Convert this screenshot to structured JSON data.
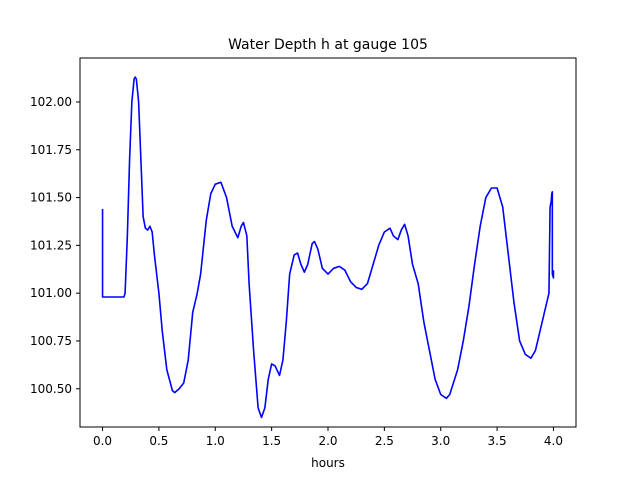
{
  "chart_data": {
    "type": "line",
    "title": "Water Depth h at gauge 105",
    "xlabel": "hours",
    "ylabel": "",
    "xlim": [
      -0.2,
      4.2
    ],
    "ylim": [
      100.3,
      102.23
    ],
    "xticks": [
      0.0,
      0.5,
      1.0,
      1.5,
      2.0,
      2.5,
      3.0,
      3.5,
      4.0
    ],
    "xtick_labels": [
      "0.0",
      "0.5",
      "1.0",
      "1.5",
      "2.0",
      "2.5",
      "3.0",
      "3.5",
      "4.0"
    ],
    "yticks": [
      100.5,
      100.75,
      101.0,
      101.25,
      101.5,
      101.75,
      102.0
    ],
    "ytick_labels": [
      "100.50",
      "100.75",
      "101.00",
      "101.25",
      "101.50",
      "101.75",
      "102.00"
    ],
    "grid": false,
    "line_color": "#0000ff",
    "series": [
      {
        "name": "",
        "points": [
          [
            0.0,
            101.44
          ],
          [
            0.0,
            100.98
          ],
          [
            0.1,
            100.98
          ],
          [
            0.19,
            100.98
          ],
          [
            0.2,
            101.0
          ],
          [
            0.22,
            101.3
          ],
          [
            0.24,
            101.7
          ],
          [
            0.26,
            102.0
          ],
          [
            0.28,
            102.12
          ],
          [
            0.29,
            102.13
          ],
          [
            0.3,
            102.12
          ],
          [
            0.32,
            102.0
          ],
          [
            0.34,
            101.7
          ],
          [
            0.36,
            101.4
          ],
          [
            0.38,
            101.34
          ],
          [
            0.4,
            101.33
          ],
          [
            0.42,
            101.35
          ],
          [
            0.44,
            101.32
          ],
          [
            0.46,
            101.2
          ],
          [
            0.5,
            101.0
          ],
          [
            0.53,
            100.8
          ],
          [
            0.57,
            100.6
          ],
          [
            0.62,
            100.49
          ],
          [
            0.64,
            100.48
          ],
          [
            0.68,
            100.5
          ],
          [
            0.72,
            100.53
          ],
          [
            0.76,
            100.65
          ],
          [
            0.8,
            100.9
          ],
          [
            0.84,
            101.0
          ],
          [
            0.87,
            101.1
          ],
          [
            0.92,
            101.38
          ],
          [
            0.96,
            101.52
          ],
          [
            1.0,
            101.57
          ],
          [
            1.05,
            101.58
          ],
          [
            1.1,
            101.5
          ],
          [
            1.15,
            101.35
          ],
          [
            1.2,
            101.29
          ],
          [
            1.23,
            101.35
          ],
          [
            1.25,
            101.37
          ],
          [
            1.28,
            101.3
          ],
          [
            1.3,
            101.05
          ],
          [
            1.34,
            100.7
          ],
          [
            1.38,
            100.4
          ],
          [
            1.41,
            100.35
          ],
          [
            1.44,
            100.4
          ],
          [
            1.47,
            100.55
          ],
          [
            1.5,
            100.63
          ],
          [
            1.53,
            100.62
          ],
          [
            1.57,
            100.57
          ],
          [
            1.6,
            100.65
          ],
          [
            1.63,
            100.85
          ],
          [
            1.66,
            101.1
          ],
          [
            1.7,
            101.2
          ],
          [
            1.73,
            101.21
          ],
          [
            1.76,
            101.15
          ],
          [
            1.79,
            101.11
          ],
          [
            1.82,
            101.15
          ],
          [
            1.86,
            101.26
          ],
          [
            1.88,
            101.27
          ],
          [
            1.91,
            101.23
          ],
          [
            1.95,
            101.13
          ],
          [
            2.0,
            101.1
          ],
          [
            2.05,
            101.13
          ],
          [
            2.1,
            101.14
          ],
          [
            2.15,
            101.12
          ],
          [
            2.2,
            101.06
          ],
          [
            2.25,
            101.03
          ],
          [
            2.3,
            101.02
          ],
          [
            2.35,
            101.05
          ],
          [
            2.4,
            101.15
          ],
          [
            2.45,
            101.25
          ],
          [
            2.5,
            101.32
          ],
          [
            2.55,
            101.34
          ],
          [
            2.58,
            101.3
          ],
          [
            2.62,
            101.28
          ],
          [
            2.65,
            101.33
          ],
          [
            2.68,
            101.36
          ],
          [
            2.71,
            101.3
          ],
          [
            2.75,
            101.15
          ],
          [
            2.8,
            101.05
          ],
          [
            2.85,
            100.85
          ],
          [
            2.9,
            100.7
          ],
          [
            2.95,
            100.55
          ],
          [
            3.0,
            100.47
          ],
          [
            3.05,
            100.45
          ],
          [
            3.08,
            100.47
          ],
          [
            3.15,
            100.6
          ],
          [
            3.2,
            100.75
          ],
          [
            3.25,
            100.93
          ],
          [
            3.3,
            101.15
          ],
          [
            3.35,
            101.35
          ],
          [
            3.4,
            101.5
          ],
          [
            3.45,
            101.55
          ],
          [
            3.5,
            101.55
          ],
          [
            3.55,
            101.45
          ],
          [
            3.6,
            101.2
          ],
          [
            3.65,
            100.95
          ],
          [
            3.7,
            100.75
          ],
          [
            3.75,
            100.68
          ],
          [
            3.8,
            100.66
          ],
          [
            3.84,
            100.7
          ],
          [
            3.88,
            100.8
          ],
          [
            3.92,
            100.9
          ],
          [
            3.96,
            101.0
          ],
          [
            3.97,
            101.45
          ],
          [
            3.98,
            101.48
          ],
          [
            3.985,
            101.52
          ],
          [
            3.99,
            101.53
          ],
          [
            3.99,
            101.1
          ],
          [
            4.0,
            101.08
          ],
          [
            4.0,
            101.12
          ]
        ]
      }
    ]
  }
}
